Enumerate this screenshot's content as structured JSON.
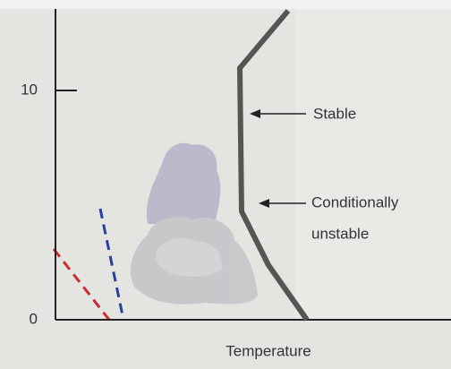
{
  "y_axis": {
    "tick_labels": [
      "10",
      "0"
    ]
  },
  "x_axis": {
    "label": "Temperature"
  },
  "annotations": {
    "stable": "Stable",
    "conditional": [
      "Conditionally",
      "unstable"
    ]
  }
}
